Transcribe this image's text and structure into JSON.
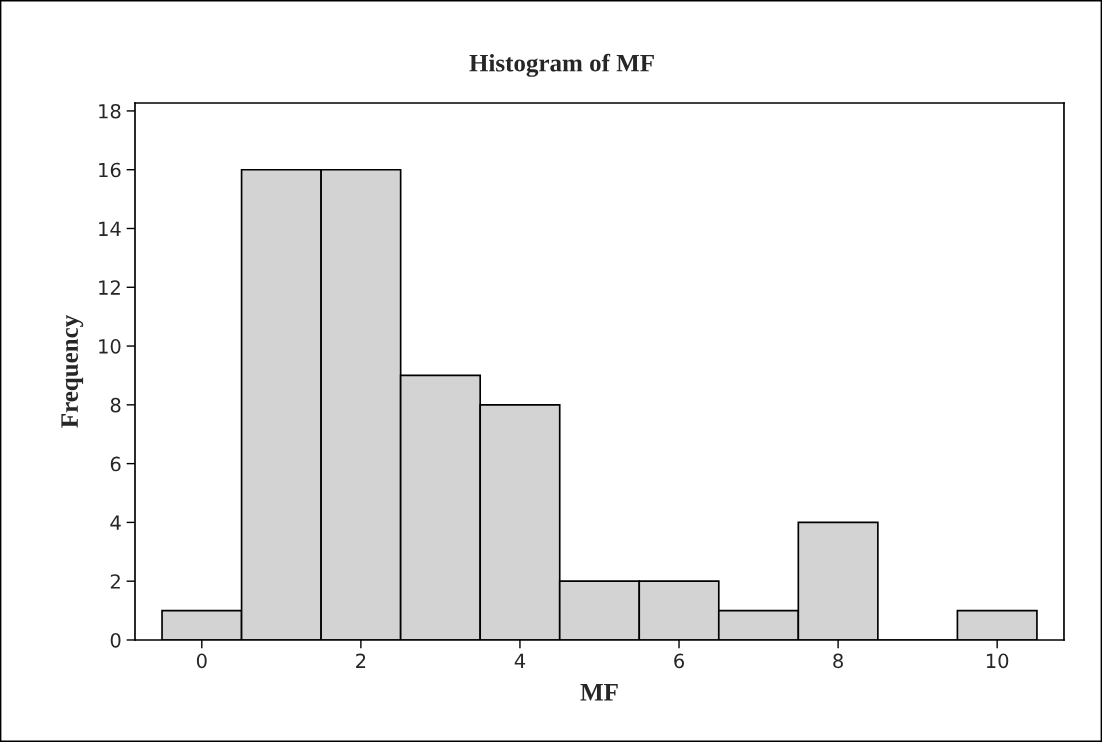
{
  "chart_data": {
    "type": "histogram",
    "title": "Histogram of MF",
    "xlabel": "MF",
    "ylabel": "Frequency",
    "bins": [
      -0.5,
      0.5,
      1.5,
      2.5,
      3.5,
      4.5,
      5.5,
      6.5,
      7.5,
      8.5,
      9.5,
      10.5
    ],
    "values": [
      1,
      16,
      16,
      9,
      8,
      2,
      2,
      1,
      4,
      0,
      1
    ],
    "color": "#d3d3d3",
    "xlim": [
      -0.84,
      10.84
    ],
    "xticks": [
      0,
      2,
      4,
      6,
      8,
      10
    ],
    "ylim": [
      0,
      18.27
    ],
    "yticks": [
      0,
      2,
      4,
      6,
      8,
      10,
      12,
      14,
      16,
      18
    ],
    "grid": false,
    "legend": false
  }
}
